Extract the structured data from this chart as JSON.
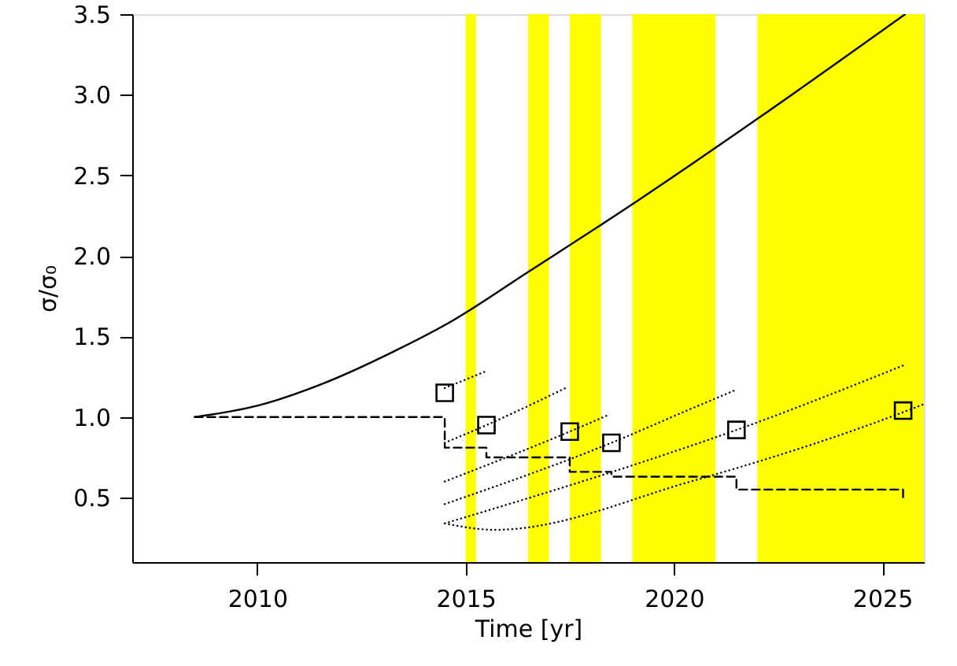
{
  "chart_data": {
    "type": "line",
    "xlabel": "Time [yr]",
    "ylabel": "σ/σ₀",
    "xlim": [
      2007,
      2026
    ],
    "ylim": [
      0.1,
      3.5
    ],
    "xticks": [
      2010,
      2015,
      2020,
      2025
    ],
    "yticks": [
      0.5,
      {
        "value": 1,
        "label": "1.0"
      },
      1.5,
      {
        "value": 2,
        "label": "2.0"
      },
      2.5,
      {
        "value": 3,
        "label": "3.0"
      },
      3.5
    ],
    "grid": false,
    "bands": [
      {
        "axis": "x",
        "from": 2015.0,
        "to": 2015.25,
        "color": "#ffff00"
      },
      {
        "axis": "x",
        "from": 2016.5,
        "to": 2017.0,
        "color": "#ffff00"
      },
      {
        "axis": "x",
        "from": 2017.5,
        "to": 2018.25,
        "color": "#ffff00"
      },
      {
        "axis": "x",
        "from": 2019.0,
        "to": 2021.0,
        "color": "#ffff00"
      },
      {
        "axis": "x",
        "from": 2022.0,
        "to": 2026.0,
        "color": "#ffff00"
      }
    ],
    "series": [
      {
        "color": "#000000",
        "line_style": "solid",
        "x": [
          2008.5,
          2010.0,
          2011.5,
          2013.3,
          2014.7,
          2016.5,
          2019.0,
          2022.0,
          2025.55
        ],
        "values": [
          1.0,
          1.07,
          1.2,
          1.41,
          1.6,
          1.9,
          2.32,
          2.85,
          3.5
        ]
      },
      {
        "type": "step",
        "color": "#000000",
        "line_style": "dashed",
        "x": [
          2008.5,
          2014.5,
          2015.5,
          2017.5,
          2018.5,
          2021.5,
          2025.5
        ],
        "values": [
          1.0,
          0.81,
          0.75,
          0.66,
          0.63,
          0.55,
          0.49
        ]
      },
      {
        "color": "#000000",
        "line_style": "dotted",
        "x": [
          2014.5,
          2015.45
        ],
        "values": [
          1.18,
          1.28
        ]
      },
      {
        "color": "#000000",
        "line_style": "dotted",
        "x": [
          2014.5,
          2015.5,
          2017.4
        ],
        "values": [
          0.84,
          0.95,
          1.18
        ]
      },
      {
        "color": "#000000",
        "line_style": "dotted",
        "x": [
          2014.5,
          2017.5,
          2018.4
        ],
        "values": [
          0.6,
          0.91,
          1.01
        ]
      },
      {
        "color": "#000000",
        "line_style": "dotted",
        "x": [
          2014.5,
          2018.5,
          2020.4,
          2021.5
        ],
        "values": [
          0.46,
          0.84,
          1.05,
          1.17
        ]
      },
      {
        "color": "#000000",
        "line_style": "dotted",
        "x": [
          2014.5,
          2019.7,
          2021.5,
          2025.5
        ],
        "values": [
          0.34,
          0.76,
          0.92,
          1.32
        ]
      },
      {
        "color": "#000000",
        "line_style": "dotted",
        "x": [
          2014.5,
          2015.7,
          2020.4,
          2025.5,
          2026.0
        ],
        "values": [
          0.34,
          0.3,
          0.6,
          1.03,
          1.08
        ]
      },
      {
        "type": "scatter",
        "color": "#000000",
        "marker": "square",
        "x": [
          2014.5,
          2015.5,
          2017.5,
          2018.5,
          2021.5,
          2025.5
        ],
        "values": [
          1.15,
          0.95,
          0.91,
          0.84,
          0.92,
          1.04
        ]
      }
    ]
  }
}
